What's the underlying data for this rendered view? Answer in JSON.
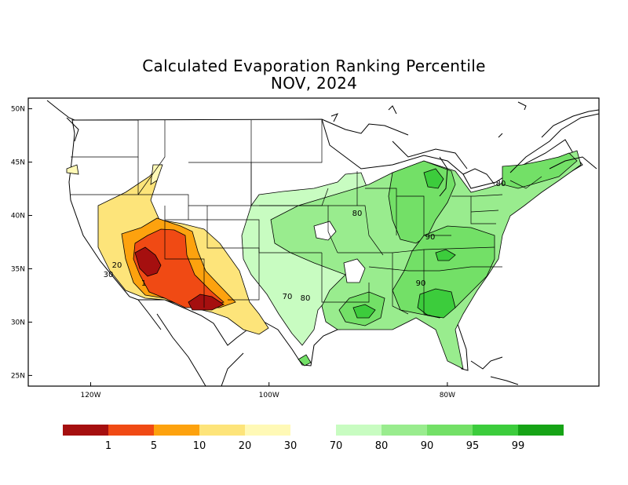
{
  "title": "Calculated Evaporation Ranking Percentile",
  "subtitle": "NOV, 2024",
  "axes": {
    "x_ticks": [
      {
        "lon": -120,
        "label": "120W"
      },
      {
        "lon": -100,
        "label": "100W"
      },
      {
        "lon": -80,
        "label": "80W"
      }
    ],
    "y_ticks": [
      {
        "lat": 50,
        "label": "50N"
      },
      {
        "lat": 45,
        "label": "45N"
      },
      {
        "lat": 40,
        "label": "40N"
      },
      {
        "lat": 35,
        "label": "35N"
      },
      {
        "lat": 30,
        "label": "30N"
      },
      {
        "lat": 25,
        "label": "25N"
      }
    ],
    "lon_range": [
      -127,
      -63
    ],
    "lat_range": [
      24,
      51
    ]
  },
  "legend": {
    "colors": [
      "#a50f0f",
      "#f04a14",
      "#fda20e",
      "#fde47a",
      "#fff9b6",
      "#ffffff",
      "#c8fcc1",
      "#99ec8e",
      "#73e067",
      "#3ccc3c",
      "#16a316"
    ],
    "boundary_labels": [
      "1",
      "5",
      "10",
      "20",
      "30",
      "70",
      "80",
      "90",
      "95",
      "99"
    ]
  },
  "contour_labels": [
    {
      "text": "20"
    },
    {
      "text": "30"
    },
    {
      "text": "1"
    },
    {
      "text": "80"
    },
    {
      "text": "70"
    },
    {
      "text": "80"
    },
    {
      "text": "90"
    },
    {
      "text": "90"
    },
    {
      "text": "80"
    }
  ],
  "chart_data": {
    "type": "heatmap",
    "title": "Calculated Evaporation Ranking Percentile",
    "subtitle": "NOV, 2024",
    "xlabel": "",
    "ylabel": "",
    "x_ticks": [
      "120W",
      "100W",
      "80W"
    ],
    "y_ticks": [
      "50N",
      "45N",
      "40N",
      "35N",
      "30N",
      "25N"
    ],
    "legend_levels": [
      1,
      5,
      10,
      20,
      30,
      70,
      80,
      90,
      95,
      99
    ],
    "grid": false
  }
}
